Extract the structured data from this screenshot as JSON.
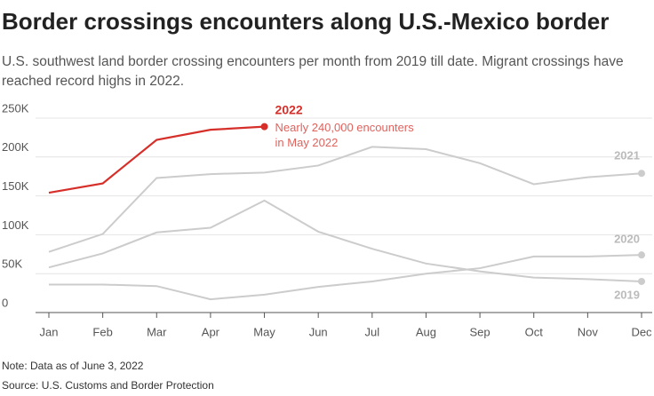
{
  "chart_data": {
    "type": "line",
    "title": "Border crossings encounters along U.S.-Mexico border",
    "subtitle": [
      "U.S. southwest land border crossing encounters per month from 2019 till date. Migrant crossings have",
      "reached record highs in 2022."
    ],
    "categories": [
      "Jan",
      "Feb",
      "Mar",
      "Apr",
      "May",
      "Jun",
      "Jul",
      "Aug",
      "Sep",
      "Oct",
      "Nov",
      "Dec"
    ],
    "series": [
      {
        "name": "2019",
        "color": "#cccccc",
        "values": [
          58000,
          76000,
          103000,
          109000,
          144000,
          104000,
          82000,
          63000,
          53000,
          45000,
          43000,
          40000
        ]
      },
      {
        "name": "2020",
        "color": "#cccccc",
        "values": [
          36000,
          36000,
          34000,
          17000,
          23000,
          33000,
          40000,
          50000,
          57000,
          72000,
          72000,
          74000
        ]
      },
      {
        "name": "2021",
        "color": "#cccccc",
        "values": [
          78000,
          101000,
          173000,
          178000,
          180000,
          189000,
          213000,
          210000,
          192000,
          165000,
          174000,
          179000
        ]
      },
      {
        "name": "2022",
        "color": "#d62f2a",
        "values": [
          154000,
          166000,
          222000,
          235000,
          239000,
          null,
          null,
          null,
          null,
          null,
          null,
          null
        ]
      }
    ],
    "annotation": [
      "Nearly 240,000 encounters",
      "in May 2022"
    ],
    "ylim": [
      0,
      250000
    ],
    "yticks": [
      0,
      {
        "value": 50000,
        "label": "50K"
      },
      {
        "value": 100000,
        "label": "100K"
      },
      {
        "value": 150000,
        "label": "150K"
      },
      {
        "value": 200000,
        "label": "200K"
      },
      {
        "value": 250000,
        "label": "250K"
      }
    ],
    "grid": true,
    "notes": [
      "Note: Data as of June 3, 2022",
      "Source: U.S. Customs and Border Protection"
    ]
  }
}
